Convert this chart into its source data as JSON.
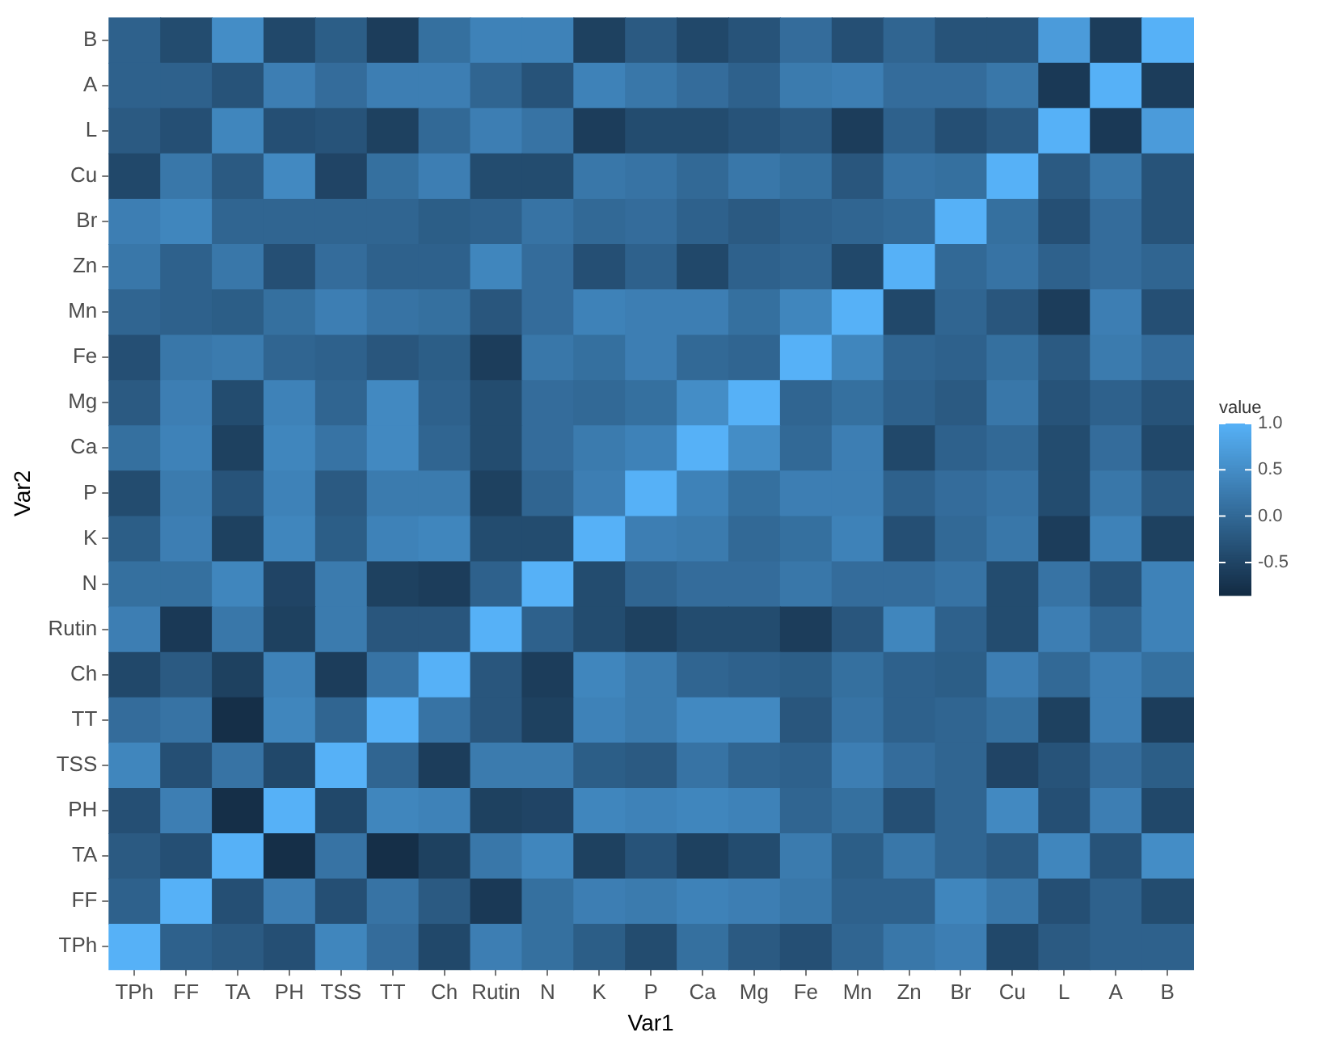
{
  "chart_data": {
    "type": "heatmap",
    "xlabel": "Var1",
    "ylabel": "Var2",
    "clabel": "value",
    "categories": [
      "TPh",
      "FF",
      "TA",
      "PH",
      "TSS",
      "TT",
      "Ch",
      "Rutin",
      "N",
      "K",
      "P",
      "Ca",
      "Mg",
      "Fe",
      "Mn",
      "Zn",
      "Br",
      "Cu",
      "L",
      "A",
      "B"
    ],
    "y_categories": [
      "B",
      "A",
      "L",
      "Cu",
      "Br",
      "Zn",
      "Mn",
      "Fe",
      "Mg",
      "Ca",
      "P",
      "K",
      "N",
      "Rutin",
      "Ch",
      "TT",
      "TSS",
      "PH",
      "TA",
      "FF",
      "TPh"
    ],
    "cells": [
      [
        -0.1,
        -0.4,
        0.5,
        -0.45,
        -0.15,
        -0.6,
        0.1,
        0.35,
        0.35,
        -0.55,
        -0.2,
        -0.45,
        -0.3,
        0.05,
        -0.35,
        -0.05,
        -0.3,
        -0.3,
        0.7,
        -0.6,
        1
      ],
      [
        -0.1,
        -0.1,
        -0.3,
        0.3,
        0.05,
        0.3,
        0.3,
        -0.05,
        -0.3,
        0.35,
        0.2,
        0.05,
        -0.1,
        0.25,
        0.3,
        0.05,
        0.05,
        0.2,
        -0.65,
        1,
        -0.6
      ],
      [
        -0.2,
        -0.35,
        0.4,
        -0.35,
        -0.3,
        -0.55,
        0,
        0.3,
        0.15,
        -0.6,
        -0.4,
        -0.4,
        -0.3,
        -0.2,
        -0.6,
        -0.1,
        -0.35,
        -0.2,
        1,
        -0.65,
        0.7
      ],
      [
        -0.45,
        0.2,
        -0.2,
        0.45,
        -0.5,
        0.1,
        0.3,
        -0.4,
        -0.4,
        0.2,
        0.15,
        0,
        0.2,
        0.1,
        -0.25,
        0.15,
        0.1,
        1,
        -0.2,
        0.2,
        -0.3
      ],
      [
        0.3,
        0.4,
        -0.05,
        -0.05,
        -0.05,
        -0.05,
        -0.15,
        -0.1,
        0.15,
        0,
        0.05,
        -0.1,
        -0.2,
        -0.1,
        -0.05,
        0,
        1,
        0.1,
        -0.35,
        0.05,
        -0.3
      ],
      [
        0.2,
        -0.1,
        0.2,
        -0.35,
        0.05,
        -0.1,
        -0.1,
        0.4,
        0.05,
        -0.35,
        -0.1,
        -0.45,
        -0.1,
        -0.05,
        -0.45,
        1,
        0,
        0.15,
        -0.1,
        0.05,
        -0.05
      ],
      [
        -0.05,
        -0.1,
        -0.15,
        0.1,
        0.3,
        0.15,
        0.1,
        -0.25,
        0.05,
        0.35,
        0.3,
        0.3,
        0.1,
        0.4,
        1,
        -0.45,
        -0.05,
        -0.25,
        -0.6,
        0.3,
        -0.35
      ],
      [
        -0.35,
        0.2,
        0.25,
        -0.05,
        -0.1,
        -0.25,
        -0.15,
        -0.6,
        0.2,
        0.1,
        0.3,
        0,
        -0.05,
        1,
        0.4,
        -0.05,
        -0.1,
        0.1,
        -0.2,
        0.25,
        0.05
      ],
      [
        -0.2,
        0.3,
        -0.4,
        0.35,
        -0.05,
        0.45,
        -0.1,
        -0.4,
        0.05,
        0,
        0.1,
        0.5,
        1,
        -0.05,
        0.1,
        -0.1,
        -0.2,
        0.2,
        -0.3,
        -0.1,
        -0.3
      ],
      [
        0.1,
        0.35,
        -0.55,
        0.4,
        0.15,
        0.45,
        -0.05,
        -0.4,
        0.05,
        0.25,
        0.35,
        1,
        0.5,
        0,
        0.3,
        -0.45,
        -0.1,
        0,
        -0.4,
        0.05,
        -0.45
      ],
      [
        -0.4,
        0.25,
        -0.3,
        0.35,
        -0.2,
        0.25,
        0.25,
        -0.55,
        -0.05,
        0.3,
        1,
        0.35,
        0.1,
        0.3,
        0.3,
        -0.1,
        0.05,
        0.15,
        -0.4,
        0.2,
        -0.2
      ],
      [
        -0.15,
        0.3,
        -0.55,
        0.4,
        -0.15,
        0.35,
        0.4,
        -0.4,
        -0.4,
        1,
        0.3,
        0.25,
        0,
        0.1,
        0.35,
        -0.35,
        0,
        0.2,
        -0.6,
        0.35,
        -0.55
      ],
      [
        0.1,
        0.1,
        0.4,
        -0.5,
        0.25,
        -0.55,
        -0.6,
        -0.1,
        1,
        -0.4,
        -0.05,
        0.05,
        0.05,
        0.2,
        0.05,
        0.05,
        0.15,
        -0.4,
        0.15,
        -0.3,
        0.35
      ],
      [
        0.3,
        -0.65,
        0.2,
        -0.55,
        0.25,
        -0.25,
        -0.25,
        1,
        -0.1,
        -0.4,
        -0.55,
        -0.4,
        -0.4,
        -0.6,
        -0.25,
        0.4,
        -0.1,
        -0.4,
        0.3,
        -0.05,
        0.35
      ],
      [
        -0.45,
        -0.2,
        -0.55,
        0.35,
        -0.6,
        0.15,
        1,
        -0.25,
        -0.6,
        0.4,
        0.25,
        -0.05,
        -0.1,
        -0.15,
        0.1,
        -0.1,
        -0.15,
        0.3,
        0,
        0.3,
        0.1
      ],
      [
        0.05,
        0.15,
        -0.8,
        0.4,
        -0.05,
        1,
        0.15,
        -0.25,
        -0.55,
        0.35,
        0.25,
        0.45,
        0.45,
        -0.25,
        0.15,
        -0.1,
        -0.05,
        0.1,
        -0.55,
        0.3,
        -0.6
      ],
      [
        0.4,
        -0.35,
        0.15,
        -0.45,
        1,
        -0.05,
        -0.6,
        0.25,
        0.25,
        -0.15,
        -0.2,
        0.15,
        -0.05,
        -0.1,
        0.3,
        0.05,
        -0.05,
        -0.5,
        -0.3,
        0.05,
        -0.15
      ],
      [
        -0.35,
        0.3,
        -0.8,
        1,
        -0.45,
        0.4,
        0.35,
        -0.55,
        -0.5,
        0.4,
        0.35,
        0.4,
        0.35,
        -0.05,
        0.1,
        -0.35,
        -0.05,
        0.45,
        -0.35,
        0.3,
        -0.45
      ],
      [
        -0.2,
        -0.35,
        1,
        -0.8,
        0.15,
        -0.8,
        -0.55,
        0.2,
        0.4,
        -0.55,
        -0.3,
        -0.55,
        -0.4,
        0.25,
        -0.15,
        0.2,
        -0.05,
        -0.2,
        0.4,
        -0.3,
        0.5
      ],
      [
        -0.1,
        1,
        -0.35,
        0.3,
        -0.35,
        0.15,
        -0.2,
        -0.65,
        0.1,
        0.3,
        0.25,
        0.35,
        0.3,
        0.2,
        -0.1,
        -0.1,
        0.4,
        0.2,
        -0.35,
        -0.1,
        -0.4
      ],
      [
        1,
        -0.1,
        -0.2,
        -0.35,
        0.4,
        0.05,
        -0.45,
        0.3,
        0.1,
        -0.15,
        -0.4,
        0.1,
        -0.2,
        -0.35,
        -0.05,
        0.2,
        0.3,
        -0.45,
        -0.2,
        -0.1,
        -0.1
      ]
    ],
    "clim": [
      -0.85,
      1
    ],
    "cticks": [
      {
        "value": -0.5,
        "label": "-0.5"
      },
      {
        "value": 0,
        "label": "0.0"
      },
      {
        "value": 0.5,
        "label": "0.5"
      },
      {
        "value": 1,
        "label": "1.0"
      }
    ]
  }
}
